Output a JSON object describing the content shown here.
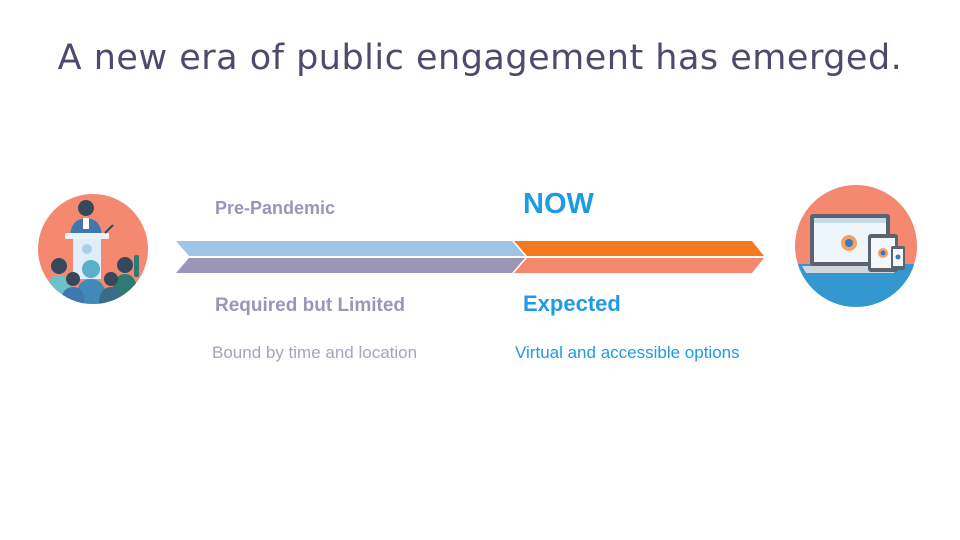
{
  "title": "A new era of public engagement has emerged.",
  "before": {
    "heading": "Pre-Pandemic",
    "status": "Required but Limited",
    "description": "Bound by time and location",
    "icon": "public-meeting-podium-icon"
  },
  "after": {
    "heading": "NOW",
    "status": "Expected",
    "description": "Virtual and accessible options",
    "icon": "multi-device-icon"
  },
  "colors": {
    "title": "#4f4a6d",
    "before_text": "#9b95b7",
    "after_text": "#1e9be3",
    "before_arrow_top": "#a0c4e6",
    "before_arrow_bottom": "#9b95b7",
    "after_arrow_top": "#f47a1f",
    "after_arrow_bottom": "#f4876c",
    "circle_salmon": "#f4896f",
    "circle_blue": "#3398cf"
  }
}
